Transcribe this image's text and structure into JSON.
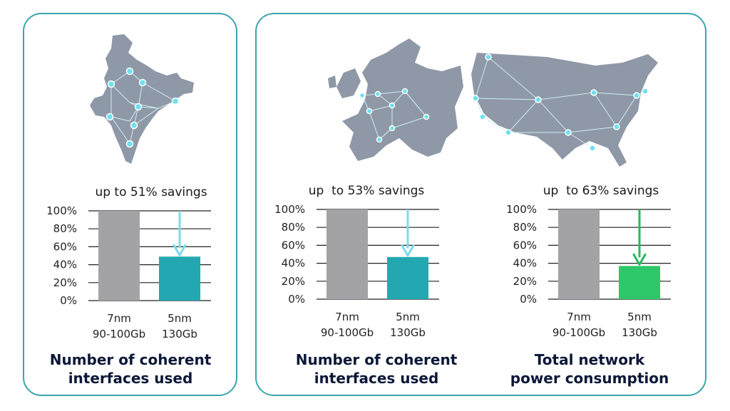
{
  "colors": {
    "panel_border": "#3aa5ad",
    "bar_7nm": "#a3a3a5",
    "bar_5nm_teal": "#23a8b1",
    "bar_5nm_green": "#2ec86a",
    "arrow_teal": "#7bdbea",
    "arrow_green": "#25b85c",
    "map_fill": "#8e98a6",
    "network_node": "#6fe0f0",
    "caption_text": "#0c1838"
  },
  "maps": {
    "left": "india-network-map",
    "right_1": "europe-network-map",
    "right_2": "usa-network-map"
  },
  "chart_data": [
    {
      "type": "bar",
      "savings_label": "up to 51% savings",
      "categories": [
        [
          "7nm",
          "90-100Gb"
        ],
        [
          "5nm",
          "130Gb"
        ]
      ],
      "values": [
        100,
        49
      ],
      "ylim": [
        0,
        100
      ],
      "yticks": [
        "0%",
        "20%",
        "40%",
        "60%",
        "80%",
        "100%"
      ],
      "bar_colors": [
        "#a3a3a5",
        "#23a8b1"
      ],
      "arrow_color": "#7bdbea",
      "caption": [
        "Number of coherent",
        "interfaces used"
      ],
      "grid": true
    },
    {
      "type": "bar",
      "savings_label": "up  to 53% savings",
      "categories": [
        [
          "7nm",
          "90-100Gb"
        ],
        [
          "5nm",
          "130Gb"
        ]
      ],
      "values": [
        100,
        47
      ],
      "ylim": [
        0,
        100
      ],
      "yticks": [
        "0%",
        "20%",
        "40%",
        "60%",
        "80%",
        "100%"
      ],
      "bar_colors": [
        "#a3a3a5",
        "#23a8b1"
      ],
      "arrow_color": "#7bdbea",
      "caption": [
        "Number of coherent",
        "interfaces used"
      ],
      "grid": true
    },
    {
      "type": "bar",
      "savings_label": "up  to 63% savings",
      "categories": [
        [
          "7nm",
          "90-100Gb"
        ],
        [
          "5nm",
          "130Gb"
        ]
      ],
      "values": [
        100,
        37
      ],
      "ylim": [
        0,
        100
      ],
      "yticks": [
        "0%",
        "20%",
        "40%",
        "60%",
        "80%",
        "100%"
      ],
      "bar_colors": [
        "#a3a3a5",
        "#2ec86a"
      ],
      "arrow_color": "#25b85c",
      "caption": [
        "Total network",
        "power consumption"
      ],
      "grid": true
    }
  ]
}
